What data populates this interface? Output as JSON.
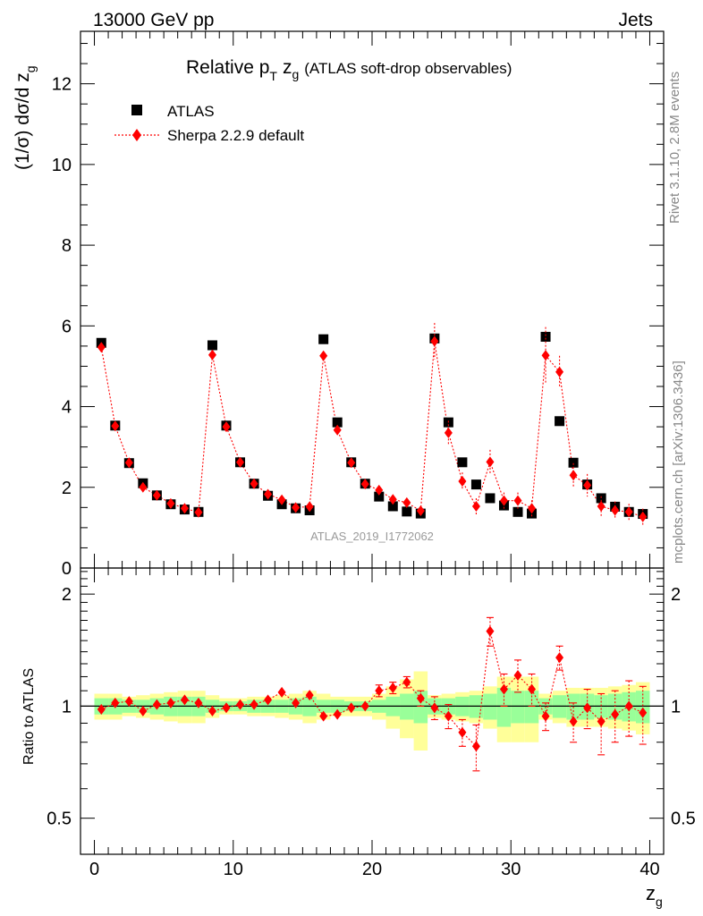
{
  "header": {
    "left": "13000 GeV pp",
    "right": "Jets"
  },
  "side": {
    "rivet": "Rivet 3.1.10,  2.8M events",
    "mcplots": "mcplots.cern.ch [arXiv:1306.3436]"
  },
  "chart_data": {
    "type": "scatter",
    "title_main": "Relative p",
    "title_sub": "T",
    "title_zg": "z",
    "title_zg_sub": "g",
    "title_rest": "(ATLAS soft-drop observables)",
    "ylabel_main": "(1/σ) dσ/d z",
    "ylabel_sub": "g",
    "xlabel": "z",
    "xlabel_sub": "g",
    "ratio_ylabel": "Ratio to ATLAS",
    "watermark": "ATLAS_2019_I1772062",
    "xlim": [
      -1,
      41
    ],
    "ylim": [
      0,
      13.3
    ],
    "ratio_ylim": [
      0.4,
      2.35
    ],
    "xticks": [
      "0",
      "10",
      "20",
      "30",
      "40"
    ],
    "yticks": [
      "0",
      "2",
      "4",
      "6",
      "8",
      "10",
      "12"
    ],
    "ratio_yticks": [
      "0.5",
      "1",
      "2"
    ],
    "x": [
      0.5,
      1.5,
      2.5,
      3.5,
      4.5,
      5.5,
      6.5,
      7.5,
      8.5,
      9.5,
      10.5,
      11.5,
      12.5,
      13.5,
      14.5,
      15.5,
      16.5,
      17.5,
      18.5,
      19.5,
      20.5,
      21.5,
      22.5,
      23.5,
      24.5,
      25.5,
      26.5,
      27.5,
      28.5,
      29.5,
      30.5,
      31.5,
      32.5,
      33.5,
      34.5,
      35.5,
      36.5,
      37.5,
      38.5,
      39.5
    ],
    "series": [
      {
        "name": "ATLAS",
        "color": "#000000",
        "marker": "square",
        "values": [
          5.58,
          3.53,
          2.6,
          2.1,
          1.8,
          1.58,
          1.45,
          1.39,
          5.52,
          3.53,
          2.62,
          2.09,
          1.79,
          1.58,
          1.48,
          1.43,
          5.67,
          3.61,
          2.62,
          2.09,
          1.77,
          1.53,
          1.4,
          1.35,
          5.69,
          3.61,
          2.62,
          2.07,
          1.73,
          1.55,
          1.39,
          1.35,
          5.73,
          3.64,
          2.61,
          2.07,
          1.73,
          1.52,
          1.39,
          1.34
        ]
      },
      {
        "name": "Sherpa 2.2.9 default",
        "color": "#ff0000",
        "marker": "diamond",
        "values": [
          5.47,
          3.52,
          2.61,
          2.0,
          1.8,
          1.6,
          1.48,
          1.38,
          5.28,
          3.5,
          2.62,
          2.09,
          1.83,
          1.69,
          1.5,
          1.52,
          5.26,
          3.42,
          2.61,
          2.08,
          1.93,
          1.7,
          1.62,
          1.42,
          5.62,
          3.35,
          2.15,
          1.53,
          2.63,
          1.67,
          1.67,
          1.48,
          5.27,
          4.86,
          2.3,
          2.05,
          1.53,
          1.43,
          1.39,
          1.27
        ],
        "errors": [
          0.05,
          0.05,
          0.04,
          0.04,
          0.04,
          0.04,
          0.04,
          0.04,
          0.08,
          0.06,
          0.05,
          0.05,
          0.05,
          0.05,
          0.05,
          0.05,
          0.1,
          0.08,
          0.07,
          0.07,
          0.07,
          0.07,
          0.07,
          0.07,
          0.45,
          0.3,
          0.22,
          0.2,
          0.3,
          0.2,
          0.2,
          0.2,
          0.7,
          0.4,
          0.3,
          0.28,
          0.25,
          0.22,
          0.2,
          0.2
        ]
      }
    ],
    "ratio": [
      0.98,
      1.02,
      1.03,
      0.97,
      1.01,
      1.02,
      1.04,
      1.02,
      0.97,
      0.99,
      1.01,
      1.01,
      1.04,
      1.09,
      1.02,
      1.07,
      0.94,
      0.95,
      0.99,
      1.0,
      1.1,
      1.12,
      1.16,
      1.05,
      0.99,
      0.94,
      0.85,
      0.78,
      1.59,
      1.11,
      1.21,
      1.11,
      0.94,
      1.35,
      0.91,
      0.99,
      0.91,
      0.95,
      1.0,
      0.96
    ],
    "ratio_errors": [
      0.02,
      0.02,
      0.02,
      0.02,
      0.02,
      0.02,
      0.02,
      0.02,
      0.02,
      0.02,
      0.02,
      0.02,
      0.02,
      0.03,
      0.03,
      0.03,
      0.03,
      0.03,
      0.03,
      0.03,
      0.04,
      0.04,
      0.04,
      0.05,
      0.07,
      0.07,
      0.07,
      0.11,
      0.14,
      0.11,
      0.12,
      0.11,
      0.08,
      0.1,
      0.11,
      0.12,
      0.17,
      0.15,
      0.17,
      0.17
    ],
    "band_green": [
      0.05,
      0.05,
      0.04,
      0.04,
      0.05,
      0.06,
      0.06,
      0.06,
      0.04,
      0.03,
      0.03,
      0.04,
      0.04,
      0.04,
      0.05,
      0.06,
      0.04,
      0.04,
      0.03,
      0.03,
      0.04,
      0.06,
      0.08,
      0.1,
      0.05,
      0.05,
      0.06,
      0.07,
      0.08,
      0.12,
      0.1,
      0.1,
      0.05,
      0.07,
      0.08,
      0.08,
      0.07,
      0.08,
      0.09,
      0.1
    ],
    "band_yellow": [
      0.08,
      0.08,
      0.06,
      0.07,
      0.08,
      0.09,
      0.1,
      0.1,
      0.07,
      0.05,
      0.05,
      0.06,
      0.06,
      0.07,
      0.08,
      0.1,
      0.08,
      0.06,
      0.06,
      0.06,
      0.08,
      0.13,
      0.18,
      0.24,
      0.07,
      0.08,
      0.09,
      0.1,
      0.13,
      0.2,
      0.2,
      0.2,
      0.08,
      0.1,
      0.12,
      0.12,
      0.12,
      0.13,
      0.14,
      0.16
    ]
  }
}
